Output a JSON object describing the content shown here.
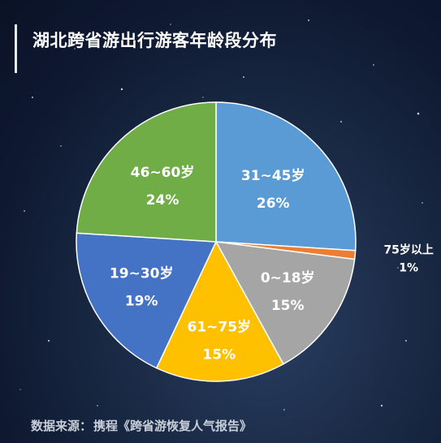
{
  "title": "湖北跨省游出行游客年龄段分布",
  "footer": {
    "label": "数据来源：",
    "source": "携程《跨省游恢复人气报告》"
  },
  "chart_data": {
    "type": "pie",
    "title": "湖北跨省游出行游客年龄段分布",
    "slices": [
      {
        "label": "31~45岁",
        "value": 26,
        "display": "26%",
        "color": "#5b9bd5",
        "text_color": "#ffffff"
      },
      {
        "label": "75岁以上",
        "value": 1,
        "display": "1%",
        "color": "#ed7d31",
        "text_color": "#ffffff"
      },
      {
        "label": "0~18岁",
        "value": 15,
        "display": "15%",
        "color": "#a5a5a5",
        "text_color": "#ffffff"
      },
      {
        "label": "61~75岁",
        "value": 15,
        "display": "15%",
        "color": "#ffc000",
        "text_color": "#ffffff"
      },
      {
        "label": "19~30岁",
        "value": 19,
        "display": "19%",
        "color": "#4472c4",
        "text_color": "#ffffff"
      },
      {
        "label": "46~60岁",
        "value": 24,
        "display": "24%",
        "color": "#70ad47",
        "text_color": "#ffffff"
      }
    ],
    "start": "12 o'clock",
    "direction": "clockwise"
  }
}
